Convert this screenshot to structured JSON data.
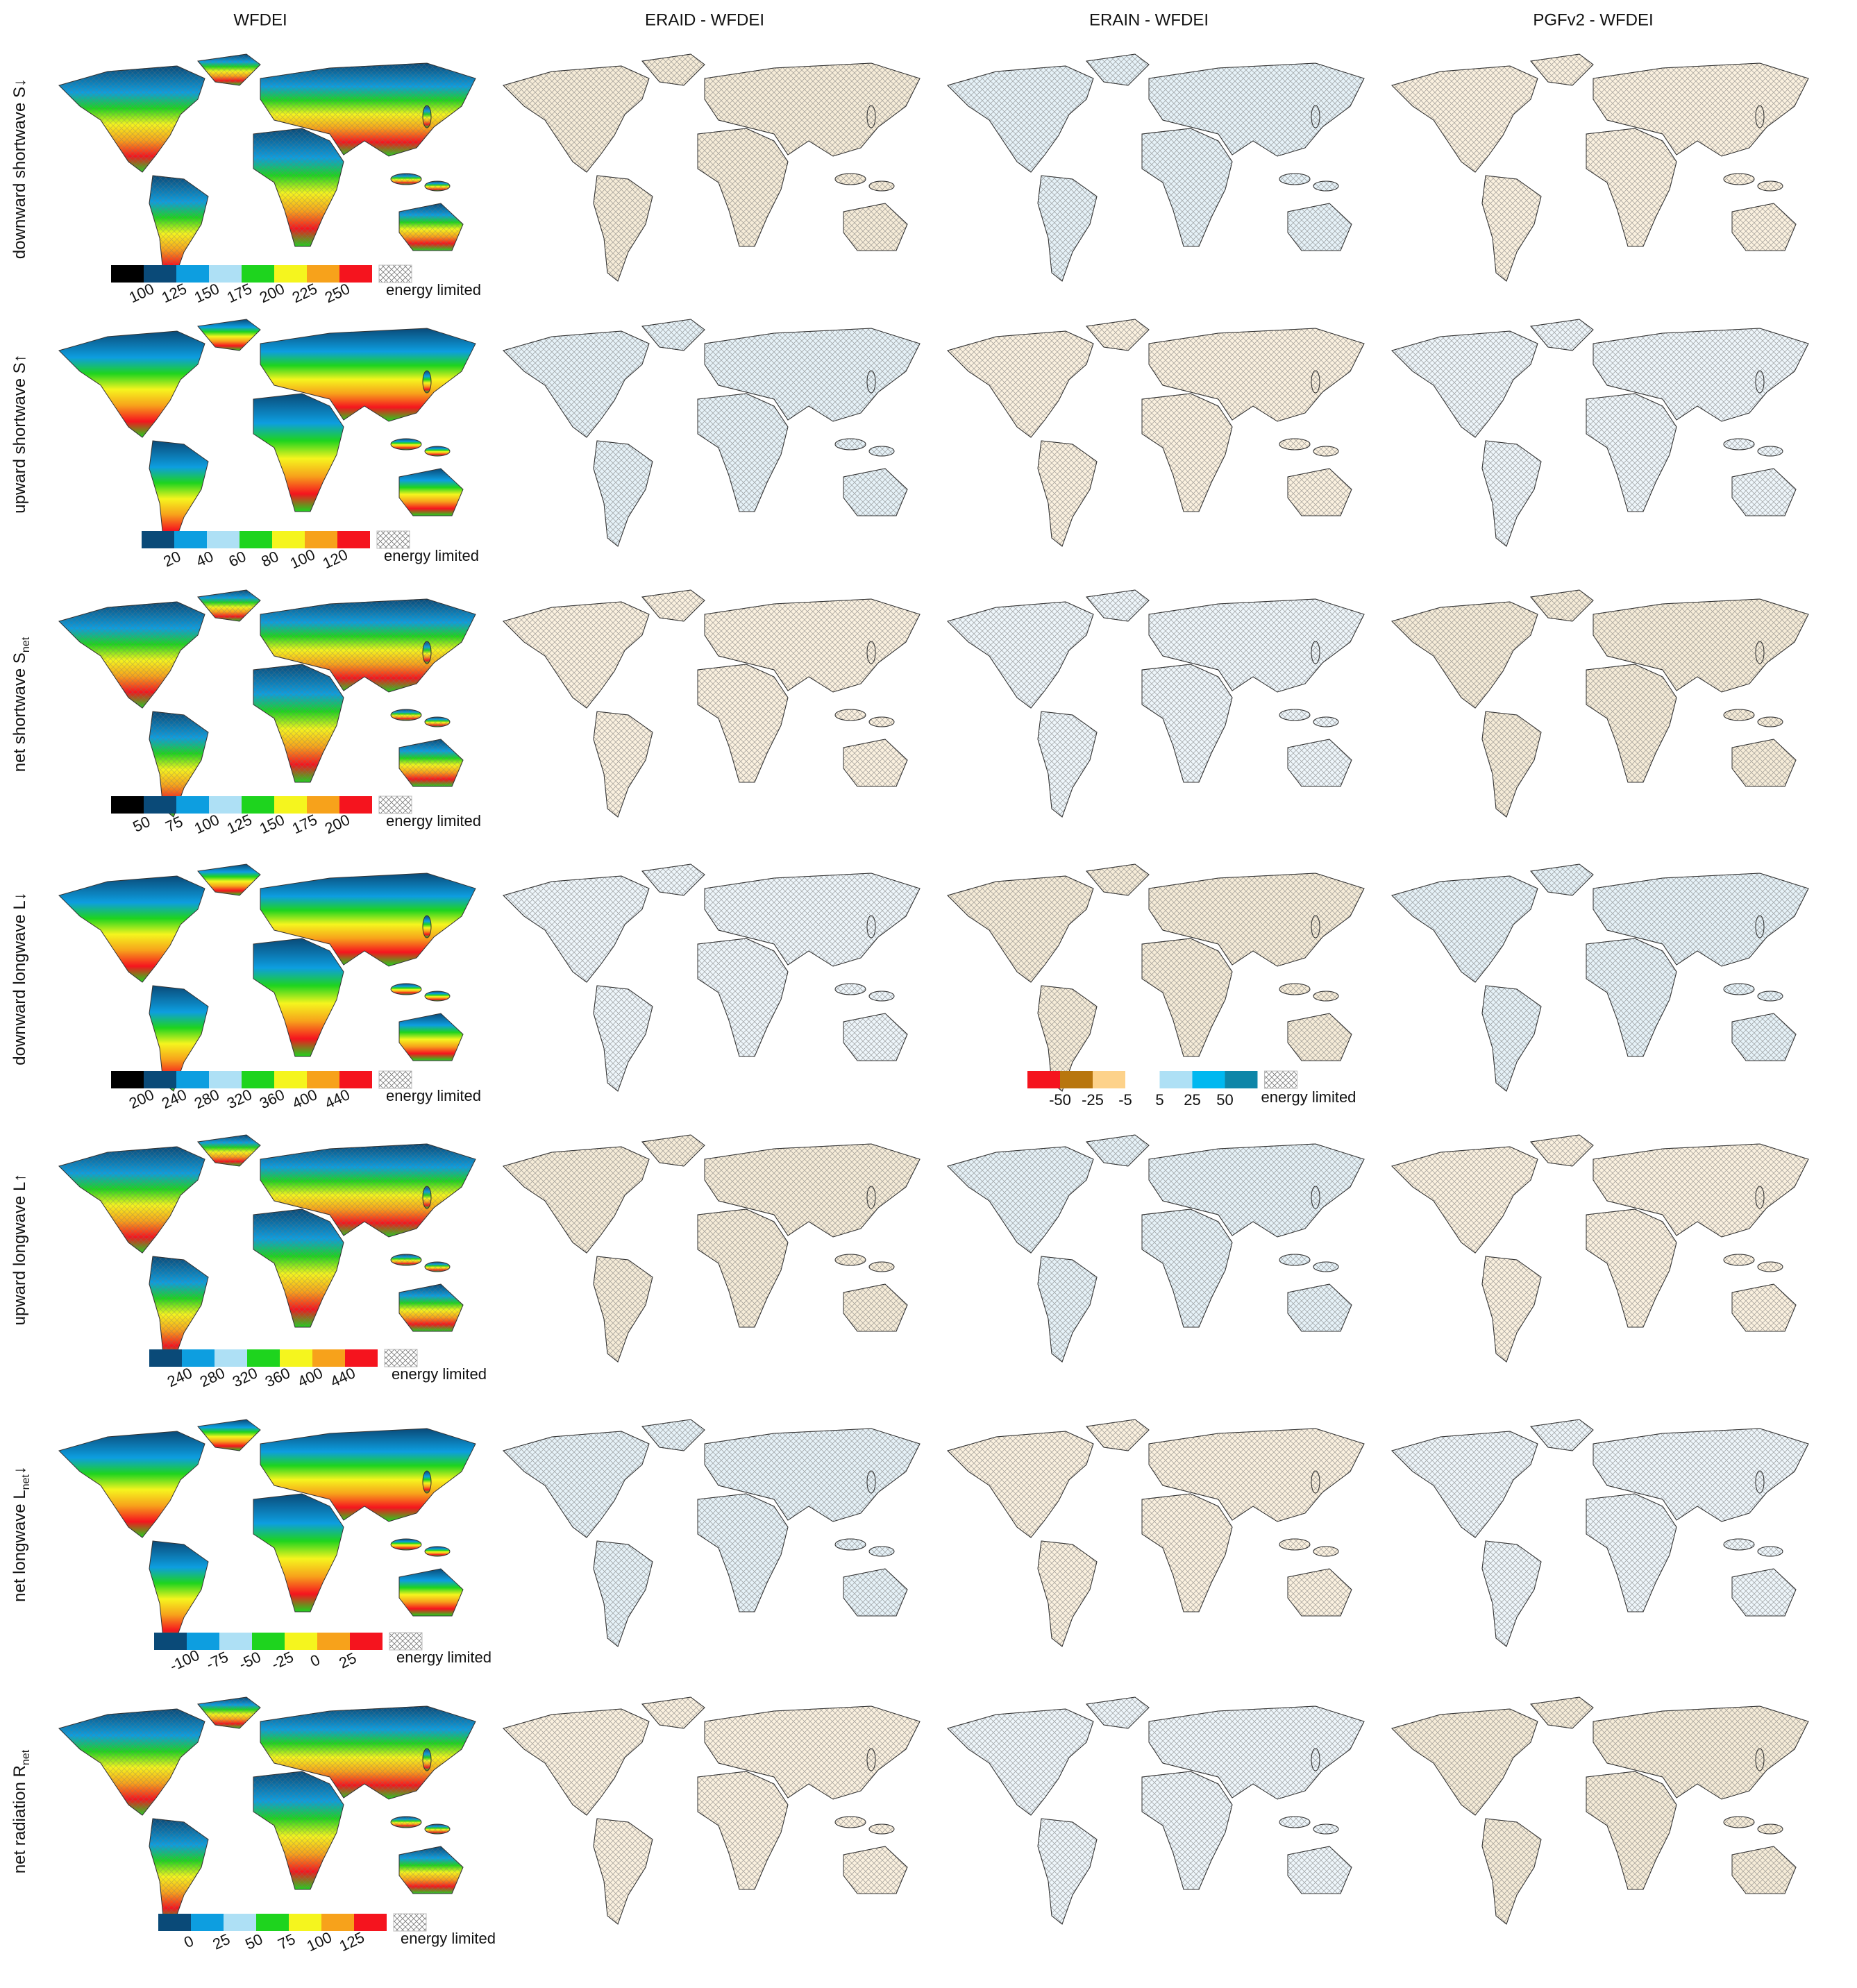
{
  "columns": [
    "WFDEI",
    "ERAID - WFDEI",
    "ERAIN - WFDEI",
    "PGFv2 - WFDEI"
  ],
  "rows": [
    {
      "label": "downward shortwave S↓",
      "colorbar": {
        "colors": [
          "#000000",
          "#0a4a78",
          "#0d9ee0",
          "#aee0f5",
          "#1ed41e",
          "#f5f51e",
          "#f7a21b",
          "#f5141e"
        ],
        "ticks": [
          100,
          125,
          150,
          175,
          200,
          225,
          250
        ],
        "note": "energy limited"
      }
    },
    {
      "label": "upward shortwave S↑",
      "colorbar": {
        "colors": [
          "#0a4a78",
          "#0d9ee0",
          "#aee0f5",
          "#1ed41e",
          "#f5f51e",
          "#f7a21b",
          "#f5141e"
        ],
        "ticks": [
          20,
          40,
          60,
          80,
          100,
          120
        ],
        "note": "energy limited"
      }
    },
    {
      "label": "net shortwave S",
      "subscript": "net",
      "colorbar": {
        "colors": [
          "#000000",
          "#0a4a78",
          "#0d9ee0",
          "#aee0f5",
          "#1ed41e",
          "#f5f51e",
          "#f7a21b",
          "#f5141e"
        ],
        "ticks": [
          50,
          75,
          100,
          125,
          150,
          175,
          200
        ],
        "note": "energy limited"
      }
    },
    {
      "label": "downward longwave L↓",
      "colorbar": {
        "colors": [
          "#000000",
          "#0a4a78",
          "#0d9ee0",
          "#aee0f5",
          "#1ed41e",
          "#f5f51e",
          "#f7a21b",
          "#f5141e"
        ],
        "ticks": [
          200,
          240,
          280,
          320,
          360,
          400,
          440
        ],
        "note": "energy limited"
      }
    },
    {
      "label": "upward longwave L↑",
      "colorbar": {
        "colors": [
          "#0a4a78",
          "#0d9ee0",
          "#aee0f5",
          "#1ed41e",
          "#f5f51e",
          "#f7a21b",
          "#f5141e"
        ],
        "ticks": [
          240,
          280,
          320,
          360,
          400,
          440
        ],
        "note": "energy limited"
      }
    },
    {
      "label": "net longwave L",
      "subscript": "net",
      "suffix": "↓",
      "colorbar": {
        "colors": [
          "#0a4a78",
          "#0d9ee0",
          "#aee0f5",
          "#1ed41e",
          "#f5f51e",
          "#f7a21b",
          "#f5141e"
        ],
        "ticks": [
          -100,
          -75,
          -50,
          -25,
          0,
          25
        ],
        "note": "energy limited"
      }
    },
    {
      "label": "net radiation R",
      "subscript": "net",
      "colorbar": {
        "colors": [
          "#0a4a78",
          "#0d9ee0",
          "#aee0f5",
          "#1ed41e",
          "#f5f51e",
          "#f7a21b",
          "#f5141e"
        ],
        "ticks": [
          0,
          25,
          50,
          75,
          100,
          125
        ],
        "note": "energy limited"
      }
    }
  ],
  "difference_colorbar": {
    "negative_colors": [
      "#f5141e",
      "#b8760e",
      "#fdd28a"
    ],
    "positive_colors": [
      "#aee0f5",
      "#00b8f0",
      "#0e86a8"
    ],
    "ticks": [
      -50,
      -25,
      -5,
      5,
      25,
      50
    ],
    "note": "energy limited"
  }
}
